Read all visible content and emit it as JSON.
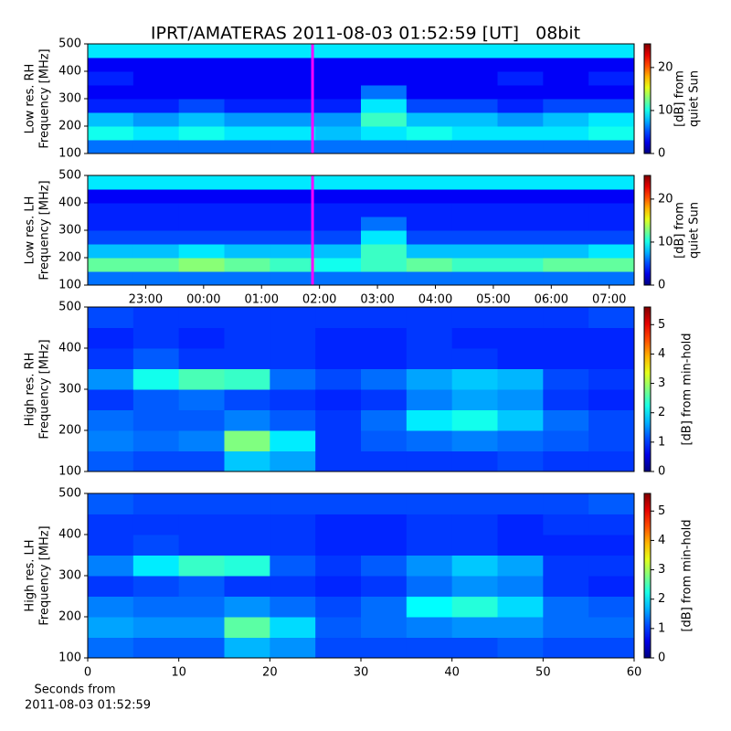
{
  "chart_data": [
    {
      "type": "heatmap",
      "title": "IPRT/AMATERAS 2011-08-03 01:52:59 [UT]   08bit",
      "ylabel": [
        "Low res. RH",
        "Frequency [MHz]"
      ],
      "xlim": [
        22,
        31.43
      ],
      "ylim": [
        100,
        500
      ],
      "yticks": [
        100,
        200,
        300,
        400,
        500
      ],
      "y_bins": [
        100,
        150,
        200,
        250,
        300,
        350,
        400,
        450,
        500
      ],
      "z": [
        [
          6,
          6,
          6,
          6,
          6,
          6,
          6,
          6,
          6,
          6,
          6,
          6
        ],
        [
          10,
          9,
          10,
          9,
          9,
          8,
          9,
          10,
          9,
          9,
          9,
          10
        ],
        [
          8,
          7,
          8,
          7,
          7,
          7,
          11,
          8,
          8,
          7,
          8,
          9
        ],
        [
          4,
          4,
          5,
          4,
          4,
          4,
          9,
          5,
          5,
          4,
          5,
          5
        ],
        [
          3,
          3,
          3,
          3,
          3,
          3,
          6,
          3,
          3,
          3,
          3,
          3
        ],
        [
          4,
          3,
          3,
          3,
          3,
          3,
          3,
          3,
          3,
          4,
          3,
          4
        ],
        [
          3,
          3,
          3,
          3,
          3,
          3,
          3,
          3,
          3,
          3,
          3,
          3
        ],
        [
          9,
          9,
          9,
          9,
          9,
          9,
          9,
          9,
          9,
          9,
          9,
          9
        ]
      ],
      "clim": [
        0,
        25.5
      ],
      "cticks": [
        0,
        10,
        20
      ],
      "clabel": [
        "[dB] from",
        "quiet Sun"
      ],
      "marker": {
        "x": 25.88,
        "color": "#ff00ff"
      }
    },
    {
      "type": "heatmap",
      "ylabel": [
        "Low res. LH",
        "Frequency [MHz]"
      ],
      "xlim": [
        22,
        31.43
      ],
      "xticks": [
        {
          "value": 23,
          "label": "23:00"
        },
        {
          "value": 24,
          "label": "00:00"
        },
        {
          "value": 25,
          "label": "01:00"
        },
        {
          "value": 26,
          "label": "02:00"
        },
        {
          "value": 27,
          "label": "03:00"
        },
        {
          "value": 28,
          "label": "04:00"
        },
        {
          "value": 29,
          "label": "05:00"
        },
        {
          "value": 30,
          "label": "06:00"
        },
        {
          "value": 31,
          "label": "07:00"
        }
      ],
      "ylim": [
        100,
        500
      ],
      "yticks": [
        100,
        200,
        300,
        400,
        500
      ],
      "y_bins": [
        100,
        150,
        200,
        250,
        300,
        350,
        400,
        450,
        500
      ],
      "z": [
        [
          6,
          6,
          6,
          6,
          6,
          6,
          6,
          6,
          6,
          6,
          6,
          6
        ],
        [
          12,
          12,
          13,
          12,
          11,
          10,
          11,
          12,
          11,
          11,
          12,
          12
        ],
        [
          8,
          8,
          9,
          8,
          8,
          8,
          11,
          8,
          8,
          8,
          8,
          9
        ],
        [
          5,
          5,
          5,
          5,
          5,
          5,
          9,
          5,
          5,
          5,
          5,
          5
        ],
        [
          4,
          4,
          4,
          4,
          4,
          4,
          6,
          4,
          4,
          4,
          4,
          4
        ],
        [
          4,
          4,
          4,
          4,
          4,
          4,
          4,
          4,
          4,
          4,
          4,
          4
        ],
        [
          3,
          3,
          3,
          3,
          3,
          3,
          3,
          3,
          3,
          3,
          3,
          3
        ],
        [
          9,
          9,
          9,
          9,
          9,
          9,
          9,
          9,
          9,
          9,
          9,
          9
        ]
      ],
      "clim": [
        0,
        25.5
      ],
      "cticks": [
        0,
        10,
        20
      ],
      "clabel": [
        "[dB] from",
        "quiet Sun"
      ],
      "marker": {
        "x": 25.88,
        "color": "#ff00ff"
      }
    },
    {
      "type": "heatmap",
      "ylabel": [
        "High res. RH",
        "Frequency [MHz]"
      ],
      "xlim": [
        0,
        60
      ],
      "ylim": [
        100,
        500
      ],
      "yticks": [
        100,
        200,
        300,
        400,
        500
      ],
      "y_bins": [
        100,
        150,
        200,
        250,
        300,
        350,
        400,
        450,
        500
      ],
      "z": [
        [
          1.2,
          1.1,
          1.1,
          1.8,
          1.6,
          1.0,
          1.0,
          1.0,
          1.0,
          1.1,
          1.0,
          1.0
        ],
        [
          1.4,
          1.3,
          1.4,
          2.8,
          2.0,
          1.0,
          1.2,
          1.3,
          1.4,
          1.3,
          1.2,
          1.1
        ],
        [
          1.3,
          1.2,
          1.2,
          1.4,
          1.2,
          1.0,
          1.3,
          2.0,
          2.2,
          1.8,
          1.3,
          1.1
        ],
        [
          1.0,
          1.2,
          1.3,
          1.1,
          1.0,
          0.9,
          1.0,
          1.4,
          1.6,
          1.5,
          1.0,
          0.9
        ],
        [
          1.5,
          2.2,
          2.5,
          2.4,
          1.3,
          1.1,
          1.3,
          1.6,
          1.8,
          1.7,
          1.1,
          1.0
        ],
        [
          1.0,
          1.2,
          1.0,
          1.0,
          1.0,
          0.9,
          0.9,
          1.0,
          1.0,
          0.9,
          0.9,
          0.9
        ],
        [
          0.9,
          1.0,
          0.9,
          1.0,
          1.0,
          0.9,
          0.9,
          1.0,
          0.9,
          0.9,
          0.9,
          0.9
        ],
        [
          1.1,
          1.0,
          1.0,
          1.0,
          1.0,
          1.0,
          1.0,
          1.0,
          1.0,
          1.0,
          1.0,
          1.1
        ]
      ],
      "clim": [
        0,
        5.6
      ],
      "cticks": [
        0,
        1,
        2,
        3,
        4,
        5
      ],
      "clabel": [
        "[dB] from min-hold"
      ]
    },
    {
      "type": "heatmap",
      "ylabel": [
        "High res. LH",
        "Frequency [MHz]"
      ],
      "xlabel": [
        "Seconds from",
        "2011-08-03 01:52:59"
      ],
      "xlim": [
        0,
        60
      ],
      "xticks": [
        0,
        10,
        20,
        30,
        40,
        50,
        60
      ],
      "ylim": [
        100,
        500
      ],
      "yticks": [
        100,
        200,
        300,
        400,
        500
      ],
      "y_bins": [
        100,
        150,
        200,
        250,
        300,
        350,
        400,
        450,
        500
      ],
      "z": [
        [
          1.3,
          1.2,
          1.2,
          1.7,
          1.5,
          1.1,
          1.1,
          1.1,
          1.1,
          1.2,
          1.1,
          1.1
        ],
        [
          1.6,
          1.5,
          1.5,
          2.6,
          1.9,
          1.2,
          1.3,
          1.4,
          1.5,
          1.5,
          1.3,
          1.3
        ],
        [
          1.4,
          1.3,
          1.3,
          1.5,
          1.3,
          1.1,
          1.3,
          2.1,
          2.3,
          1.9,
          1.3,
          1.2
        ],
        [
          1.0,
          1.1,
          1.2,
          1.0,
          1.0,
          0.9,
          1.0,
          1.3,
          1.5,
          1.4,
          1.0,
          0.9
        ],
        [
          1.4,
          2.0,
          2.4,
          2.3,
          1.2,
          1.0,
          1.2,
          1.5,
          1.8,
          1.6,
          1.0,
          1.0
        ],
        [
          1.0,
          1.1,
          1.0,
          1.0,
          1.0,
          0.9,
          0.9,
          1.0,
          1.0,
          0.9,
          0.9,
          0.9
        ],
        [
          1.0,
          1.0,
          1.0,
          1.0,
          1.0,
          0.9,
          0.9,
          1.0,
          1.0,
          0.9,
          1.0,
          1.0
        ],
        [
          1.2,
          1.1,
          1.1,
          1.1,
          1.1,
          1.1,
          1.1,
          1.1,
          1.1,
          1.1,
          1.1,
          1.2
        ]
      ],
      "clim": [
        0,
        5.6
      ],
      "cticks": [
        0,
        1,
        2,
        3,
        4,
        5
      ],
      "clabel": [
        "[dB] from min-hold"
      ]
    }
  ]
}
